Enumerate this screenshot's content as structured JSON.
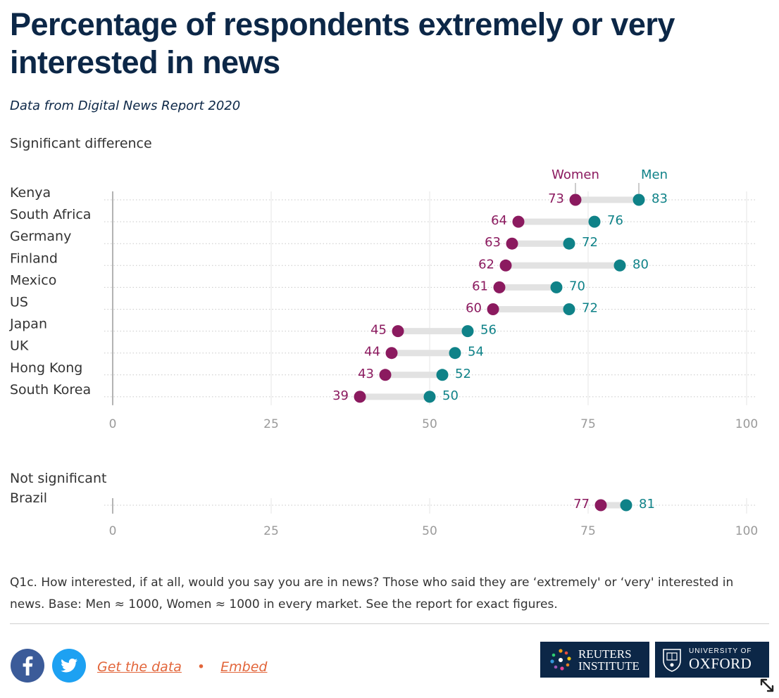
{
  "title": "Percentage of respondents extremely or very interested in news",
  "subtitle": "Data from Digital News Report 2020",
  "colors": {
    "women": "#8b1a5f",
    "men": "#0f8288",
    "title": "#0c2747",
    "link": "#e2653a"
  },
  "chart_data": [
    {
      "type": "dot-range",
      "heading": "Significant difference",
      "legend": {
        "women": "Women",
        "men": "Men"
      },
      "xlim": [
        0,
        100
      ],
      "ticks": [
        "0",
        "25",
        "50",
        "75",
        "100"
      ],
      "tick_values": [
        0,
        25,
        50,
        75,
        100
      ],
      "categories": [
        "Kenya",
        "South Africa",
        "Germany",
        "Finland",
        "Mexico",
        "US",
        "Japan",
        "UK",
        "Hong Kong",
        "South Korea"
      ],
      "series": [
        {
          "name": "Women",
          "values": [
            73,
            64,
            63,
            62,
            61,
            60,
            45,
            44,
            43,
            39
          ]
        },
        {
          "name": "Men",
          "values": [
            83,
            76,
            72,
            80,
            70,
            72,
            56,
            54,
            52,
            50
          ]
        }
      ]
    },
    {
      "type": "dot-range",
      "heading": "Not significant",
      "xlim": [
        0,
        100
      ],
      "ticks": [
        "0",
        "25",
        "50",
        "75",
        "100"
      ],
      "tick_values": [
        0,
        25,
        50,
        75,
        100
      ],
      "categories": [
        "Brazil"
      ],
      "series": [
        {
          "name": "Women",
          "values": [
            77
          ]
        },
        {
          "name": "Men",
          "values": [
            81
          ]
        }
      ]
    }
  ],
  "note": "Q1c. How interested, if at all, would you say you are in news? Those who said they are ‘extremely' or ‘very' interested in news. Base: Men ≈ 1000, Women ≈ 1000 in every market. See the report for exact figures.",
  "footer": {
    "facebook_icon": "facebook-icon",
    "twitter_icon": "twitter-icon",
    "get_data": "Get the data",
    "separator": "•",
    "embed": "Embed",
    "reuters_line1": "REUTERS",
    "reuters_line2": "INSTITUTE",
    "oxford_line1": "UNIVERSITY OF",
    "oxford_line2": "OXFORD"
  }
}
